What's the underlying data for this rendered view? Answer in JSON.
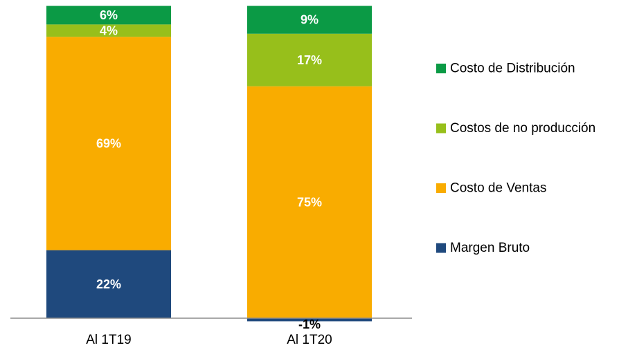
{
  "chart_data": {
    "type": "bar",
    "stacked": true,
    "categories": [
      "Al 1T19",
      "Al 1T20"
    ],
    "series": [
      {
        "name": "Margen Bruto",
        "color": "#1f497d",
        "values": [
          22,
          -1
        ],
        "labels": [
          "22%",
          "-1%"
        ]
      },
      {
        "name": "Costo de Ventas",
        "color": "#f9ac00",
        "values": [
          69,
          75
        ],
        "labels": [
          "69%",
          "75%"
        ]
      },
      {
        "name": "Costos de no producción",
        "color": "#97bf1b",
        "values": [
          4,
          17
        ],
        "labels": [
          "4%",
          "17%"
        ]
      },
      {
        "name": "Costo de Distribución",
        "color": "#0b9a45",
        "values": [
          6,
          9
        ],
        "labels": [
          "6%",
          "9%"
        ]
      }
    ],
    "ylim": [
      -1,
      101
    ],
    "grid": false,
    "legend_position": "right"
  }
}
